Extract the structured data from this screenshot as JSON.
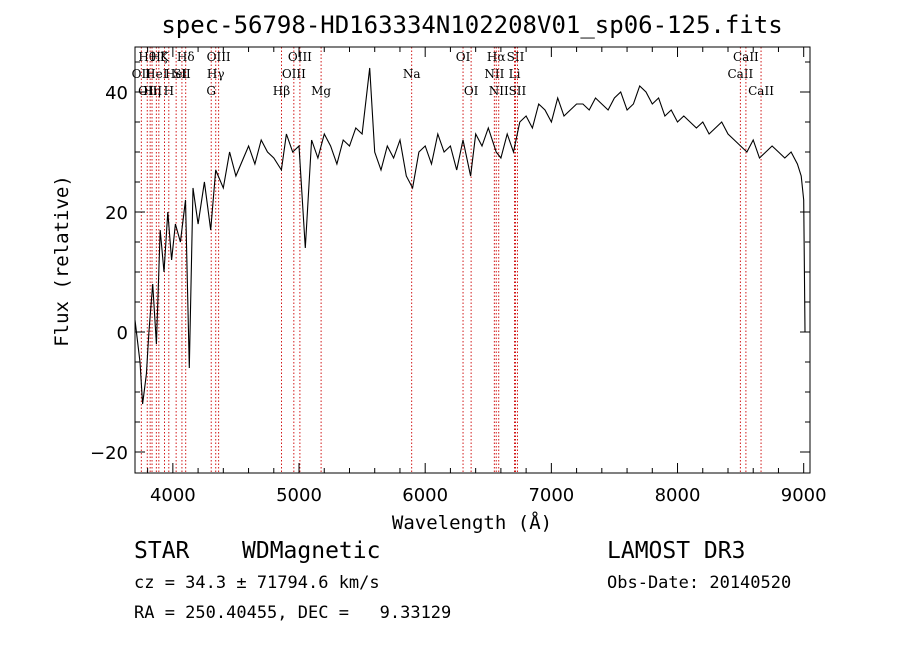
{
  "chart_data": {
    "type": "line",
    "title": "spec-56798-HD163334N102208V01_sp06-125.fits",
    "xlabel": "Wavelength (Å)",
    "ylabel": "Flux (relative)",
    "xlim": [
      3700,
      9050
    ],
    "ylim": [
      -23.5,
      47.5
    ],
    "xticks": [
      4000,
      5000,
      6000,
      7000,
      8000,
      9000
    ],
    "xtick_labels": [
      "4000",
      "5000",
      "6000",
      "7000",
      "8000",
      "9000"
    ],
    "yticks": [
      -20,
      0,
      20,
      40
    ],
    "ytick_labels": [
      "−20",
      "0",
      "20",
      "40"
    ],
    "grid": false,
    "series": [
      {
        "x": [
          3700,
          3740,
          3760,
          3790,
          3810,
          3840,
          3870,
          3900,
          3930,
          3960,
          3990,
          4020,
          4060,
          4100,
          4130,
          4160,
          4200,
          4250,
          4300,
          4340,
          4400,
          4450,
          4500,
          4560,
          4600,
          4650,
          4700,
          4750,
          4800,
          4860,
          4900,
          4950,
          5000,
          5050,
          5100,
          5150,
          5200,
          5250,
          5300,
          5350,
          5400,
          5450,
          5500,
          5560,
          5600,
          5650,
          5700,
          5750,
          5800,
          5850,
          5900,
          5950,
          6000,
          6050,
          6100,
          6150,
          6200,
          6250,
          6300,
          6360,
          6400,
          6450,
          6500,
          6563,
          6600,
          6650,
          6700,
          6750,
          6800,
          6850,
          6900,
          6950,
          7000,
          7050,
          7100,
          7150,
          7200,
          7250,
          7300,
          7350,
          7400,
          7450,
          7500,
          7550,
          7600,
          7650,
          7700,
          7750,
          7800,
          7850,
          7900,
          7950,
          8000,
          8050,
          8100,
          8150,
          8200,
          8250,
          8300,
          8350,
          8400,
          8450,
          8500,
          8550,
          8600,
          8650,
          8700,
          8750,
          8800,
          8850,
          8900,
          8950,
          8980,
          9000,
          9005,
          9010
        ],
        "y": [
          2,
          -5,
          -12,
          -7,
          0,
          8,
          -2,
          17,
          10,
          20,
          12,
          18,
          15,
          22,
          -6,
          24,
          18,
          25,
          17,
          27,
          24,
          30,
          26,
          29,
          31,
          28,
          32,
          30,
          29,
          27,
          33,
          30,
          31,
          14,
          32,
          29,
          33,
          31,
          28,
          32,
          31,
          34,
          33,
          44,
          30,
          27,
          31,
          29,
          32,
          26,
          24,
          30,
          31,
          28,
          33,
          30,
          31,
          27,
          32,
          26,
          33,
          31,
          34,
          30,
          29,
          33,
          30,
          35,
          36,
          34,
          38,
          37,
          35,
          39,
          36,
          37,
          38,
          38,
          37,
          39,
          38,
          37,
          39,
          40,
          37,
          38,
          41,
          40,
          38,
          39,
          36,
          37,
          35,
          36,
          35,
          34,
          35,
          33,
          34,
          35,
          33,
          32,
          31,
          30,
          32,
          29,
          30,
          31,
          30,
          29,
          30,
          28,
          26,
          22,
          12,
          0
        ]
      }
    ],
    "line_markers": [
      {
        "wl": 3750,
        "label": "OII",
        "row": 1
      },
      {
        "wl": 3797,
        "label": "Hθ",
        "row": 0
      },
      {
        "wl": 3820,
        "label": "OIII",
        "row": 2
      },
      {
        "wl": 3835,
        "label": "Hη",
        "row": 2
      },
      {
        "wl": 3869,
        "label": "HeI",
        "row": 1
      },
      {
        "wl": 3889,
        "label": "Hζ",
        "row": 0
      },
      {
        "wl": 3934,
        "label": "K",
        "row": 0
      },
      {
        "wl": 3968,
        "label": "H",
        "row": 2
      },
      {
        "wl": 4026,
        "label": "HeI",
        "row": 1
      },
      {
        "wl": 4072,
        "label": "SII",
        "row": 1
      },
      {
        "wl": 4102,
        "label": "Hδ",
        "row": 0
      },
      {
        "wl": 4304,
        "label": "G",
        "row": 2
      },
      {
        "wl": 4340,
        "label": "Hγ",
        "row": 1
      },
      {
        "wl": 4363,
        "label": "OIII",
        "row": 0
      },
      {
        "wl": 4861,
        "label": "Hβ",
        "row": 2
      },
      {
        "wl": 4959,
        "label": "OIII",
        "row": 1
      },
      {
        "wl": 5007,
        "label": "OIII",
        "row": 0
      },
      {
        "wl": 5175,
        "label": "Mg",
        "row": 2
      },
      {
        "wl": 5893,
        "label": "Na",
        "row": 1
      },
      {
        "wl": 6300,
        "label": "OI",
        "row": 0
      },
      {
        "wl": 6364,
        "label": "OI",
        "row": 2
      },
      {
        "wl": 6548,
        "label": "NII",
        "row": 1
      },
      {
        "wl": 6563,
        "label": "Hα",
        "row": 0
      },
      {
        "wl": 6583,
        "label": "NII",
        "row": 2
      },
      {
        "wl": 6708,
        "label": "Li",
        "row": 1
      },
      {
        "wl": 6716,
        "label": "SII",
        "row": 0
      },
      {
        "wl": 6731,
        "label": "SII",
        "row": 2
      },
      {
        "wl": 8498,
        "label": "CaII",
        "row": 1
      },
      {
        "wl": 8542,
        "label": "CaII",
        "row": 0
      },
      {
        "wl": 8662,
        "label": "CaII",
        "row": 2
      }
    ],
    "line_marker_color": "#cc0000",
    "spectrum_color": "#000000"
  },
  "info": {
    "class_label": "STAR",
    "subclass": "WDMagnetic",
    "survey": "LAMOST DR3",
    "cz": "cz = 34.3 ± 71794.6 km/s",
    "obs_date": "Obs-Date: 20140520",
    "coords": "RA = 250.40455, DEC =   9.33129"
  }
}
